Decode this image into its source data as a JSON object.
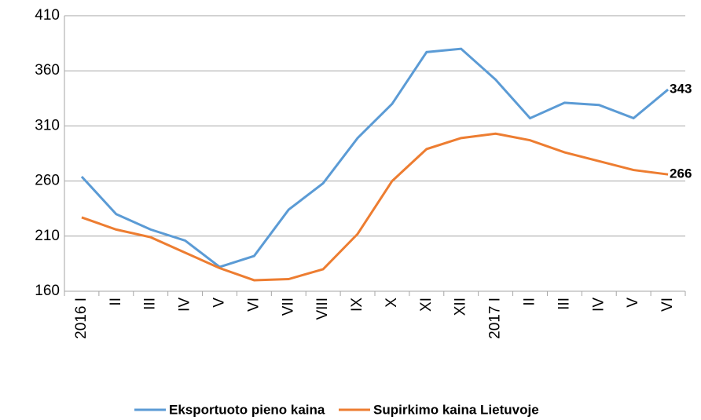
{
  "chart_data": {
    "type": "line",
    "categories": [
      "2016 I",
      "II",
      "III",
      "IV",
      "V",
      "VI",
      "VII",
      "VIII",
      "IX",
      "X",
      "XI",
      "XII",
      "2017 I",
      "II",
      "III",
      "IV",
      "V",
      "VI"
    ],
    "series": [
      {
        "name": "Eksportuoto pieno kaina",
        "color": "#5b9bd5",
        "values": [
          264,
          230,
          216,
          206,
          182,
          192,
          234,
          258,
          299,
          330,
          377,
          380,
          352,
          317,
          331,
          329,
          317,
          343
        ],
        "value_labels": [
          null,
          null,
          null,
          null,
          null,
          null,
          null,
          null,
          null,
          null,
          null,
          null,
          null,
          null,
          null,
          null,
          null,
          "343"
        ]
      },
      {
        "name": "Supirkimo kaina Lietuvoje",
        "color": "#ed7d31",
        "values": [
          227,
          216,
          209,
          195,
          181,
          170,
          171,
          180,
          212,
          260,
          289,
          299,
          303,
          297,
          286,
          278,
          270,
          266
        ],
        "value_labels": [
          null,
          null,
          null,
          null,
          null,
          null,
          null,
          null,
          null,
          null,
          null,
          null,
          null,
          null,
          null,
          null,
          null,
          "266"
        ]
      }
    ],
    "ylim": [
      160,
      410
    ],
    "yticks": [
      160,
      210,
      260,
      310,
      360,
      410
    ],
    "grid": true,
    "legend": "bottom"
  }
}
